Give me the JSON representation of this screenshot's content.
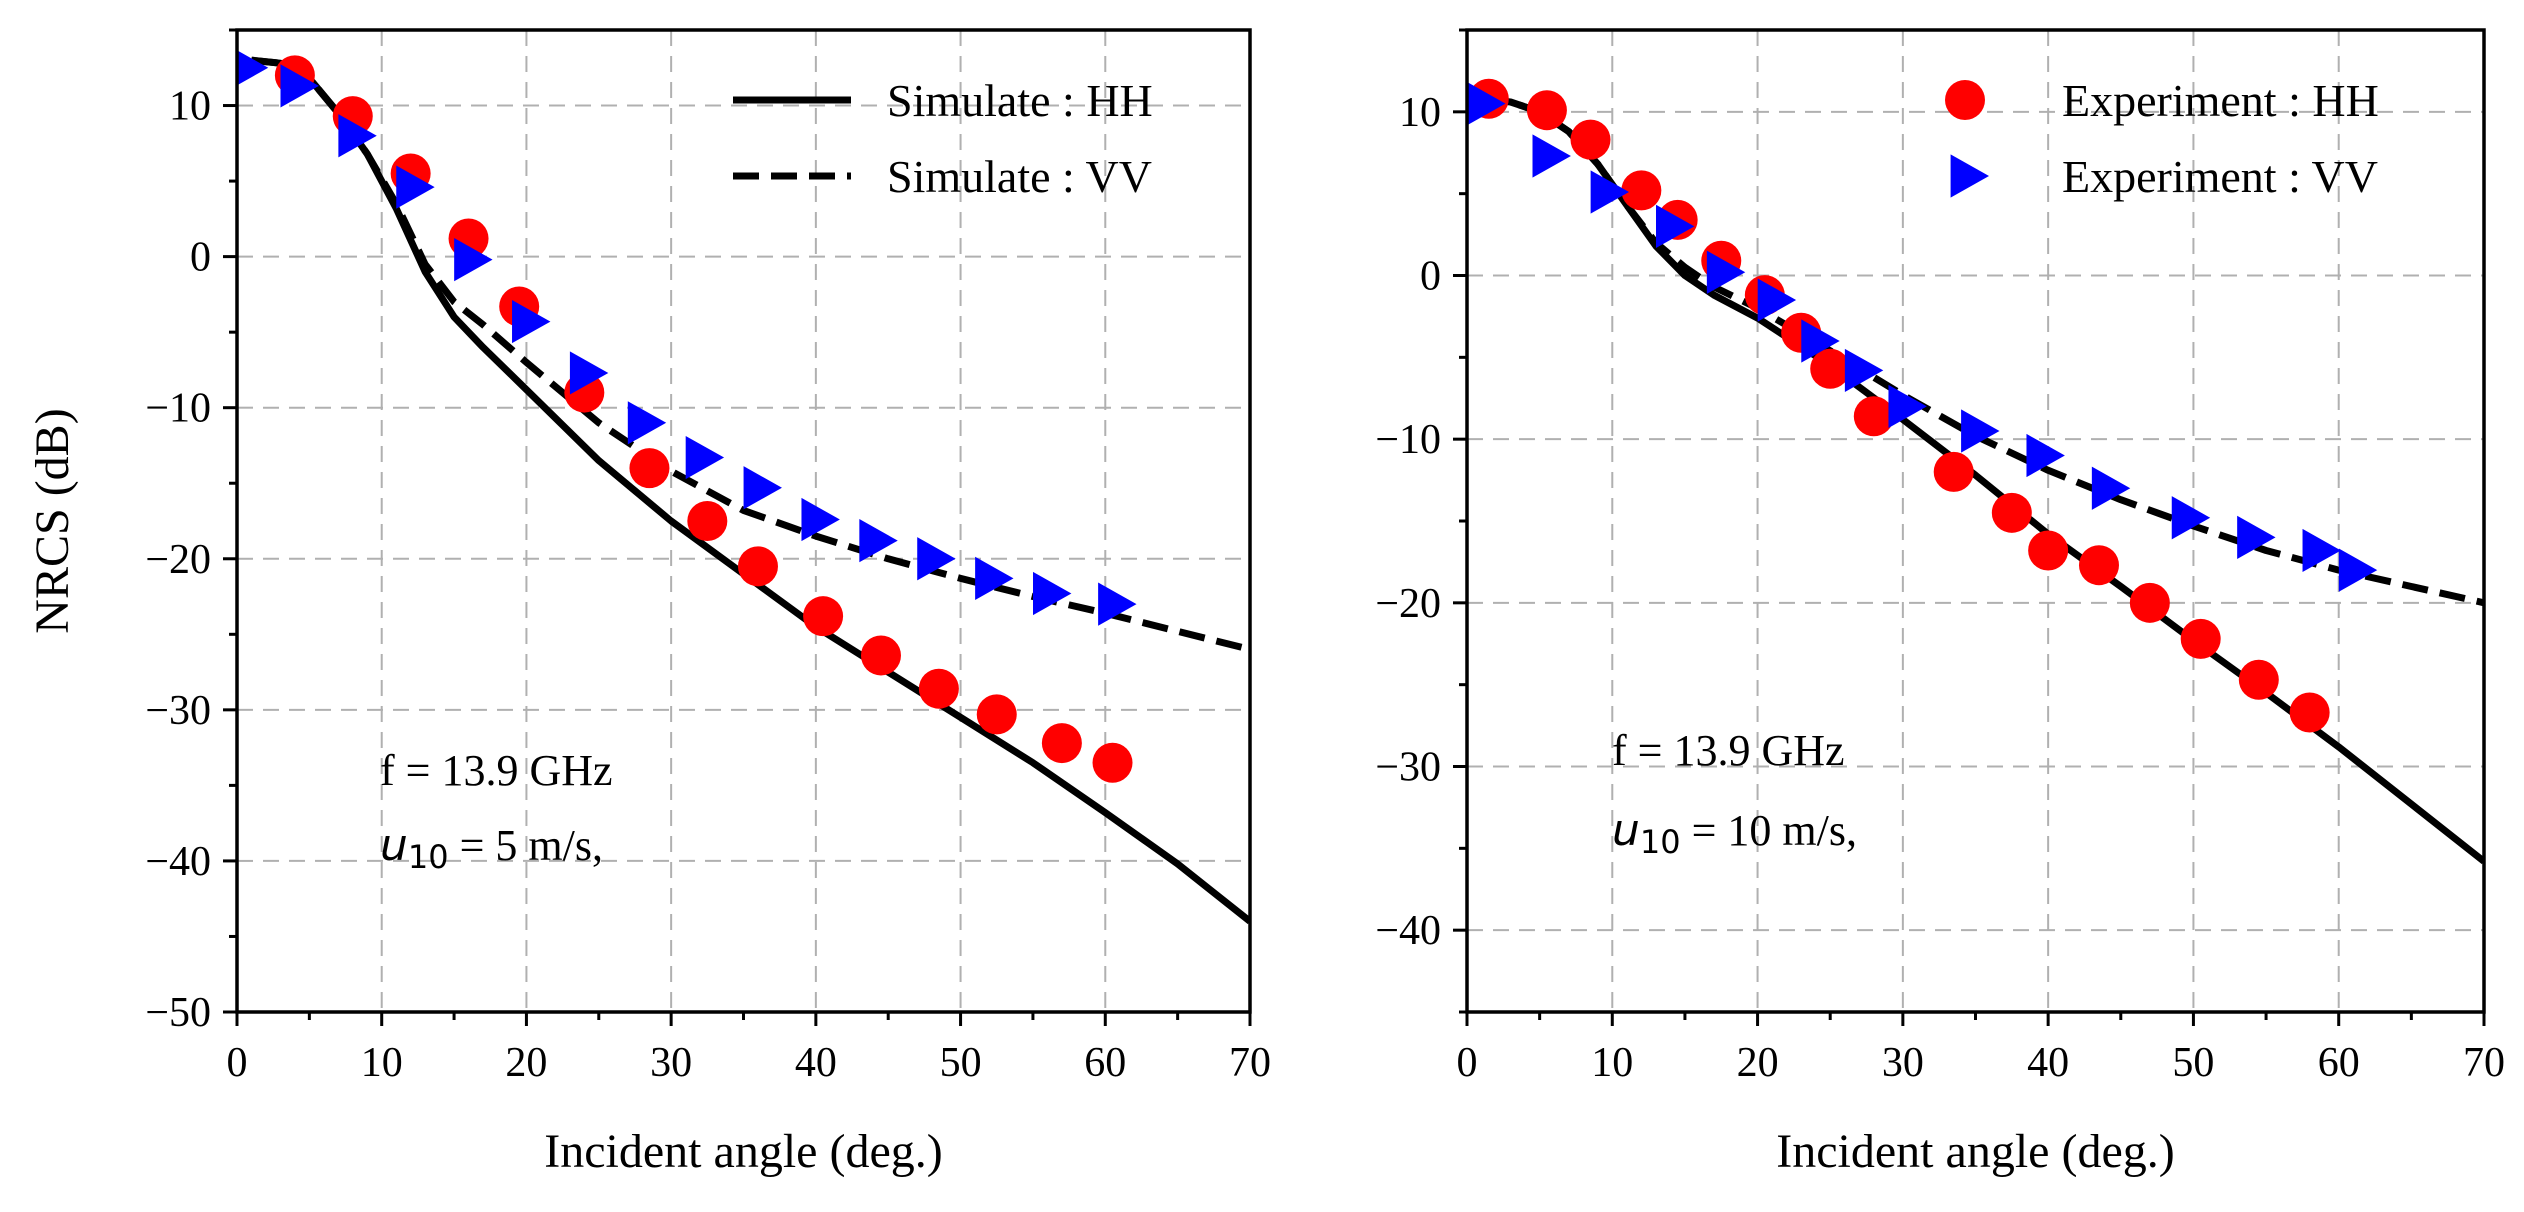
{
  "chart_data": [
    {
      "type": "line",
      "xlabel": "Incident angle (deg.)",
      "ylabel": "NRCS (dB)",
      "xlim": [
        0,
        70
      ],
      "ylim": [
        -50,
        15
      ],
      "x_ticks": [
        0,
        10,
        20,
        30,
        40,
        50,
        60,
        70
      ],
      "y_ticks": [
        10,
        0,
        -10,
        -20,
        -30,
        -40,
        -50
      ],
      "grid": true,
      "legend_position": "top-right",
      "annotation": {
        "line1": "f = 13.9 GHz",
        "line2_var": "u",
        "line2_sub": "10",
        "line2_rest": " = 5 m/s,"
      },
      "series": [
        {
          "name": "Simulate : HH",
          "style": "solid",
          "x": [
            1,
            3,
            5,
            7,
            9,
            11,
            13,
            15,
            17,
            20,
            25,
            30,
            35,
            40,
            45,
            50,
            55,
            60,
            65,
            70
          ],
          "y": [
            13.0,
            12.8,
            11.8,
            9.5,
            6.8,
            3.2,
            -1.0,
            -4.0,
            -6.0,
            -8.8,
            -13.5,
            -17.5,
            -21.0,
            -24.5,
            -27.5,
            -30.5,
            -33.5,
            -36.8,
            -40.2,
            -44.0
          ]
        },
        {
          "name": "Simulate : VV",
          "style": "dashed",
          "x": [
            1,
            3,
            5,
            7,
            9,
            11,
            13,
            15,
            17,
            20,
            25,
            30,
            35,
            40,
            45,
            50,
            55,
            60,
            65,
            70
          ],
          "y": [
            13.0,
            12.8,
            11.8,
            9.5,
            6.8,
            3.5,
            -0.5,
            -3.0,
            -4.5,
            -7.0,
            -11.0,
            -14.2,
            -16.8,
            -18.5,
            -20.0,
            -21.3,
            -22.5,
            -23.6,
            -24.8,
            -26.0
          ]
        },
        {
          "name": "Experiment : HH",
          "marker": "circle",
          "color": "#ff0000",
          "x": [
            4,
            8,
            12,
            16,
            19.5,
            24,
            28.5,
            32.5,
            36,
            40.5,
            44.5,
            48.5,
            52.5,
            57,
            60.5
          ],
          "y": [
            12.0,
            9.3,
            5.5,
            1.2,
            -3.3,
            -9.0,
            -14.0,
            -17.5,
            -20.5,
            -23.8,
            -26.4,
            -28.6,
            -30.3,
            -32.2,
            -33.5
          ]
        },
        {
          "name": "Experiment : VV",
          "marker": "triangle-right",
          "color": "#0000ff",
          "x": [
            0.5,
            4,
            8,
            12,
            16,
            20,
            24,
            28,
            32,
            36,
            40,
            44,
            48,
            52,
            56,
            60.5
          ],
          "y": [
            12.5,
            11.3,
            8.0,
            4.6,
            -0.2,
            -4.3,
            -7.7,
            -11.0,
            -13.3,
            -15.3,
            -17.4,
            -18.8,
            -20.0,
            -21.3,
            -22.3,
            -23.0
          ]
        }
      ]
    },
    {
      "type": "line",
      "xlabel": "Incident angle (deg.)",
      "ylabel": "",
      "xlim": [
        0,
        70
      ],
      "ylim": [
        -45,
        15
      ],
      "x_ticks": [
        0,
        10,
        20,
        30,
        40,
        50,
        60,
        70
      ],
      "y_ticks": [
        10,
        0,
        -10,
        -20,
        -30,
        -40
      ],
      "grid": true,
      "legend_position": "top-right",
      "annotation": {
        "line1": "f = 13.9 GHz",
        "line2_var": "u",
        "line2_sub": "10",
        "line2_rest": " = 10 m/s,"
      },
      "series": [
        {
          "name": "Simulate : HH",
          "style": "solid",
          "x": [
            1,
            3,
            5,
            7,
            9,
            11,
            13,
            15,
            17,
            20,
            25,
            30,
            35,
            40,
            45,
            50,
            55,
            60,
            65,
            70
          ],
          "y": [
            10.8,
            10.6,
            10.0,
            8.8,
            6.8,
            4.3,
            1.8,
            0.0,
            -1.2,
            -2.6,
            -5.5,
            -8.8,
            -12.2,
            -15.8,
            -19.0,
            -22.3,
            -25.5,
            -28.8,
            -32.3,
            -35.8
          ]
        },
        {
          "name": "Simulate : VV",
          "style": "dashed",
          "x": [
            1,
            3,
            5,
            7,
            9,
            11,
            13,
            15,
            17,
            20,
            25,
            30,
            35,
            40,
            45,
            50,
            55,
            60,
            65,
            70
          ],
          "y": [
            10.8,
            10.6,
            10.0,
            8.8,
            6.8,
            4.3,
            2.0,
            0.5,
            -0.7,
            -2.0,
            -4.6,
            -7.3,
            -9.8,
            -11.9,
            -13.7,
            -15.3,
            -16.8,
            -18.0,
            -19.0,
            -20.0
          ]
        },
        {
          "name": "Experiment : HH",
          "marker": "circle",
          "color": "#ff0000",
          "x": [
            1.5,
            5.5,
            8.5,
            12,
            14.5,
            17.5,
            20.5,
            23,
            25,
            28,
            33.5,
            37.5,
            40,
            43.5,
            47,
            50.5,
            54.5,
            58
          ],
          "y": [
            10.8,
            10.1,
            8.3,
            5.2,
            3.4,
            0.9,
            -1.2,
            -3.5,
            -5.7,
            -8.6,
            -12.0,
            -14.5,
            -16.8,
            -17.7,
            -20.0,
            -22.2,
            -24.7,
            -26.7
          ]
        },
        {
          "name": "Experiment : VV",
          "marker": "triangle-right",
          "color": "#0000ff",
          "x": [
            1,
            5.5,
            9.5,
            14,
            17.5,
            21,
            24,
            27,
            30,
            35,
            39.5,
            44,
            49.5,
            54,
            58.5,
            61
          ],
          "y": [
            10.5,
            7.3,
            5.1,
            3.0,
            0.2,
            -1.5,
            -4.0,
            -5.8,
            -8.0,
            -9.5,
            -11.0,
            -13.0,
            -14.8,
            -16.0,
            -16.8,
            -18.0
          ]
        }
      ]
    }
  ]
}
